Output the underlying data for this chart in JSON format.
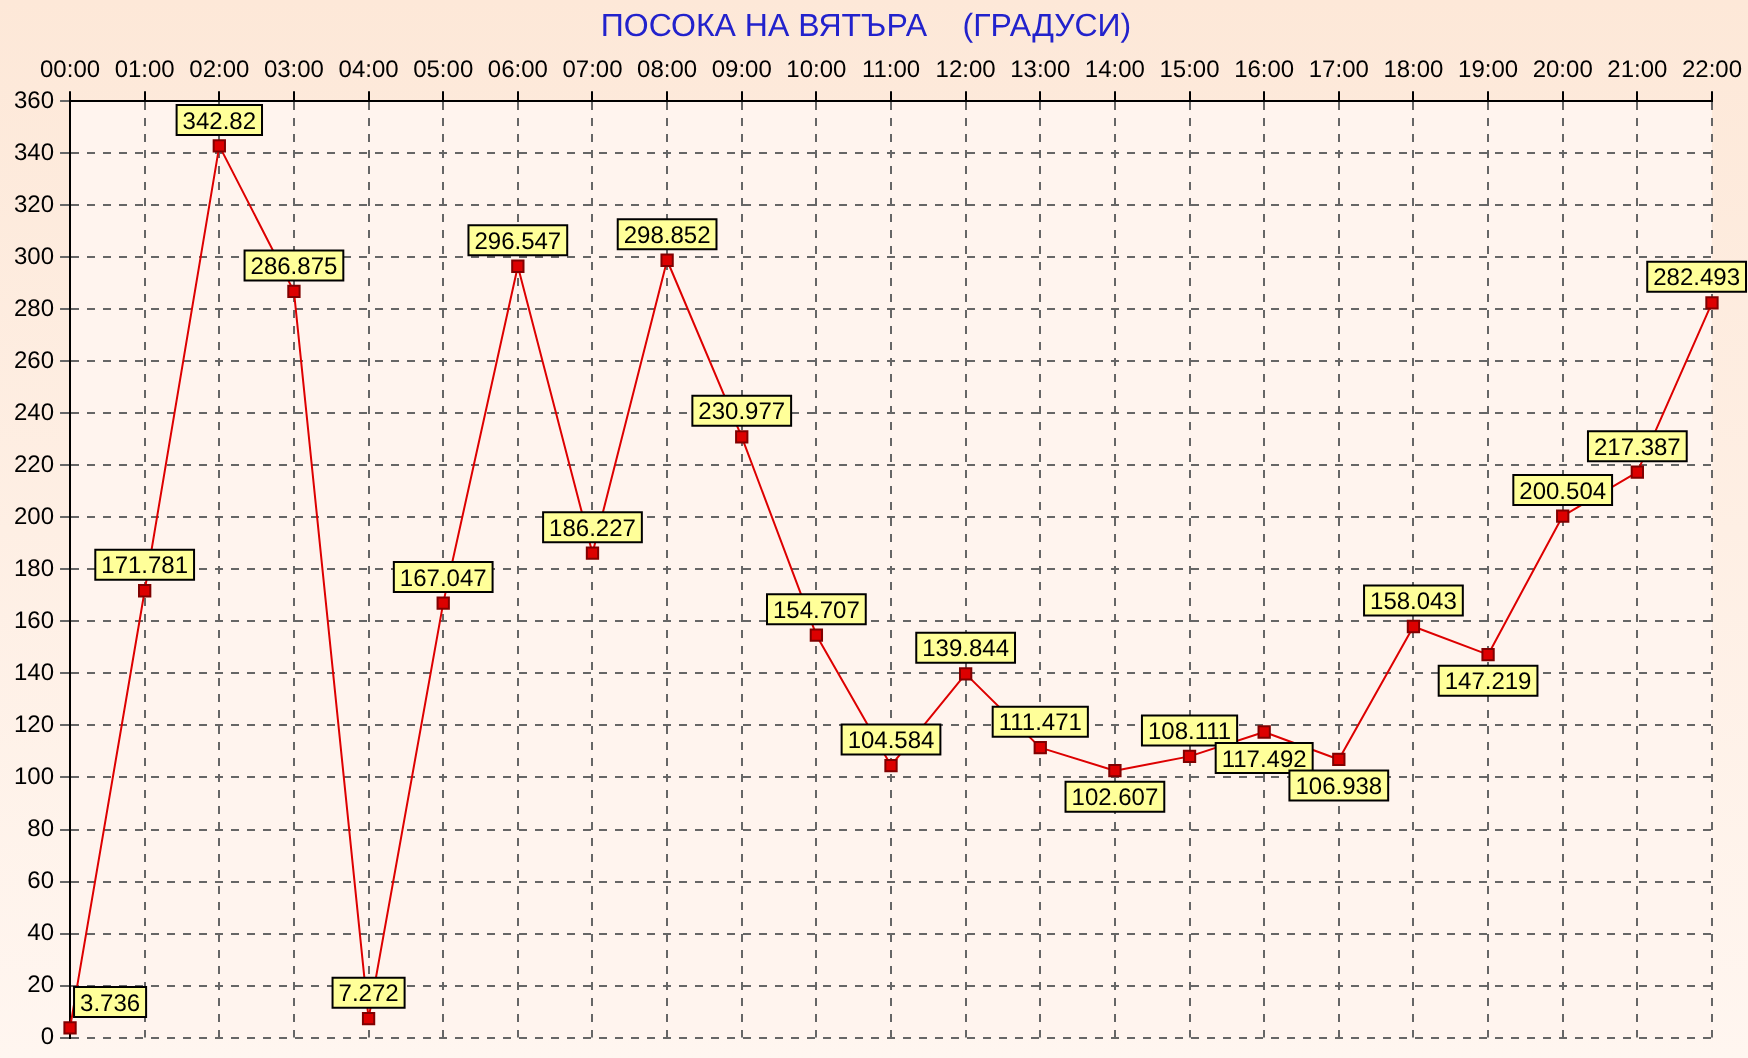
{
  "chart_data": {
    "type": "line",
    "title": "ПОСОКА НА ВЯТЪРА    (ГРАДУСИ)",
    "categories": [
      "00:00",
      "01:00",
      "02:00",
      "03:00",
      "04:00",
      "05:00",
      "06:00",
      "07:00",
      "08:00",
      "09:00",
      "10:00",
      "11:00",
      "12:00",
      "13:00",
      "14:00",
      "15:00",
      "16:00",
      "17:00",
      "18:00",
      "19:00",
      "20:00",
      "21:00",
      "22:00"
    ],
    "series": [
      {
        "color": "#dd0000",
        "values": [
          3.736,
          171.781,
          342.82,
          286.875,
          7.272,
          167.047,
          296.547,
          186.227,
          298.852,
          230.977,
          154.707,
          104.584,
          139.844,
          111.471,
          102.607,
          108.111,
          117.492,
          106.938,
          158.043,
          147.219,
          200.504,
          217.387,
          282.493
        ]
      }
    ],
    "ylim": [
      0,
      360
    ],
    "yticks": [
      0,
      20,
      40,
      60,
      80,
      100,
      120,
      140,
      160,
      180,
      200,
      220,
      240,
      260,
      280,
      300,
      320,
      340,
      360
    ],
    "grid": true,
    "legend": false,
    "marker": "square",
    "line_style": "solid",
    "data_labels": true
  }
}
